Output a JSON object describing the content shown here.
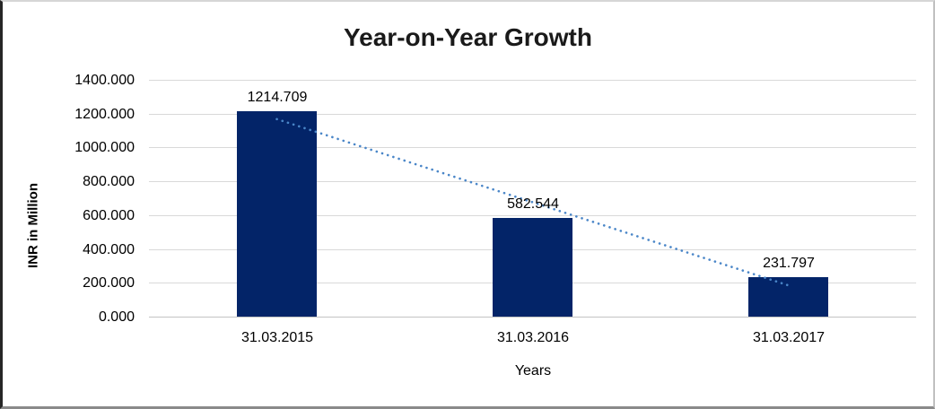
{
  "chart_data": {
    "type": "bar",
    "title": "Year-on-Year Growth",
    "xlabel": "Years",
    "ylabel": "INR in Million",
    "categories": [
      "31.03.2015",
      "31.03.2016",
      "31.03.2017"
    ],
    "values": [
      1214.709,
      582.544,
      231.797
    ],
    "data_labels": [
      "1214.709",
      "582.544",
      "231.797"
    ],
    "ylim": [
      0,
      1400
    ],
    "ytick_labels": [
      "0.000",
      "200.000",
      "400.000",
      "600.000",
      "800.000",
      "1000.000",
      "1200.000",
      "1400.000"
    ],
    "grid": true,
    "legend": false,
    "bar_color": "#032468",
    "trendline": {
      "type": "linear",
      "style": "dotted",
      "color": "#4a86c8"
    }
  }
}
